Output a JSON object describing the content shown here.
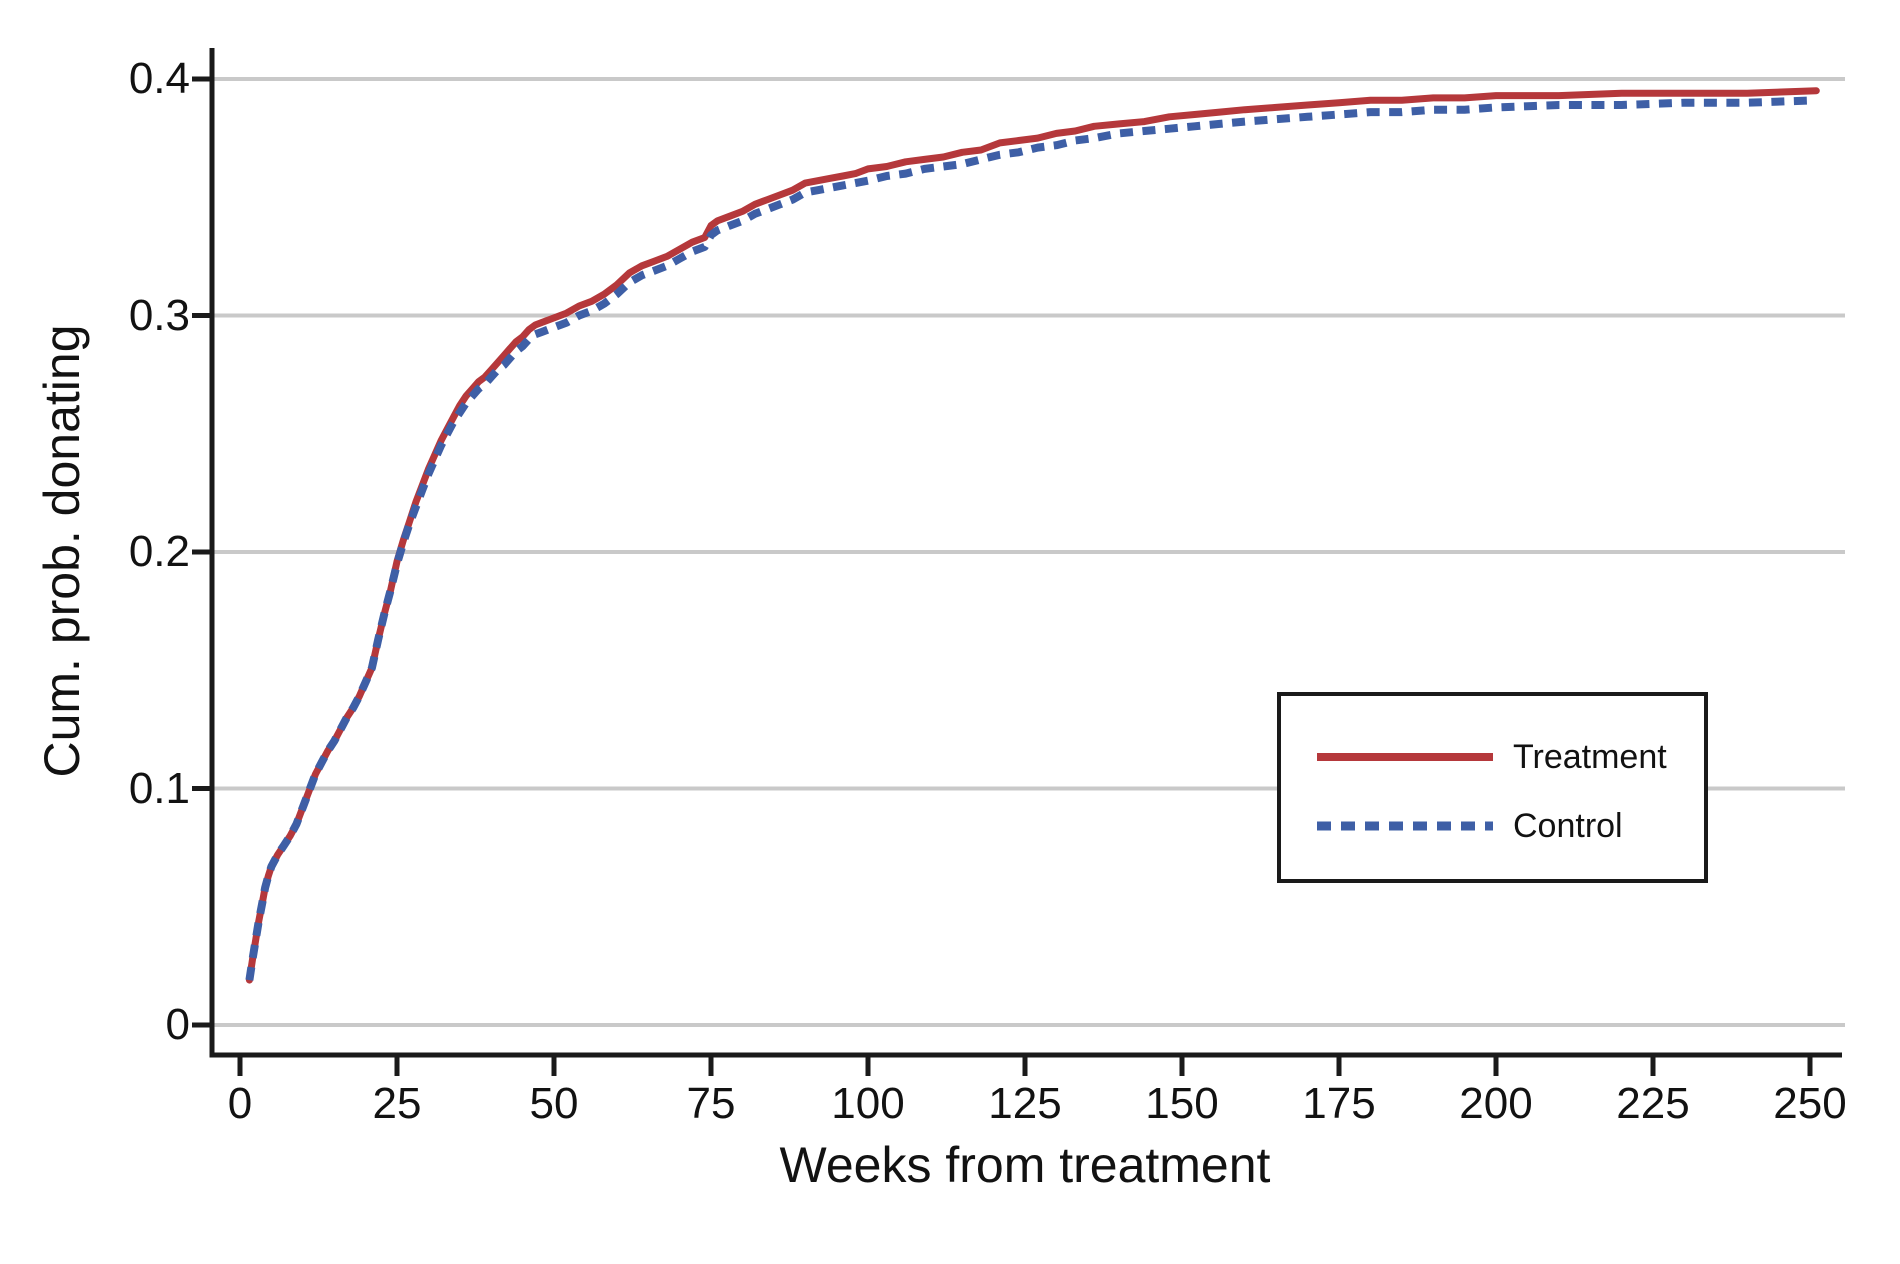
{
  "figure": {
    "background": "#ffffff",
    "text_color": "#121212",
    "gridline_color": "#c9c9c9",
    "axis_color": "#1a1a1a"
  },
  "chart_data": {
    "type": "line",
    "title": "",
    "xlabel": "Weeks from treatment",
    "ylabel": "Cum. prob. donating",
    "xlim": [
      0,
      250
    ],
    "ylim": [
      0,
      0.4
    ],
    "x_ticks": [
      "0",
      "25",
      "50",
      "75",
      "100",
      "125",
      "150",
      "175",
      "200",
      "225",
      "250"
    ],
    "y_ticks": [
      "0",
      "0.1",
      "0.2",
      "0.3",
      "0.4"
    ],
    "grid": "horizontal gridlines at y ticks",
    "legend": {
      "position": "lower right",
      "border": true
    },
    "series": [
      {
        "name": "Treatment",
        "color": "#b5383b",
        "style": "solid",
        "points": [
          [
            1.5,
            0.019
          ],
          [
            2,
            0.028
          ],
          [
            2.5,
            0.036
          ],
          [
            3,
            0.044
          ],
          [
            3.5,
            0.051
          ],
          [
            4,
            0.058
          ],
          [
            4.5,
            0.063
          ],
          [
            5,
            0.067
          ],
          [
            6,
            0.072
          ],
          [
            7,
            0.076
          ],
          [
            8,
            0.08
          ],
          [
            9,
            0.085
          ],
          [
            10,
            0.092
          ],
          [
            11,
            0.099
          ],
          [
            12,
            0.106
          ],
          [
            13,
            0.111
          ],
          [
            14,
            0.116
          ],
          [
            15,
            0.12
          ],
          [
            16,
            0.125
          ],
          [
            17,
            0.13
          ],
          [
            18,
            0.134
          ],
          [
            19,
            0.139
          ],
          [
            20,
            0.145
          ],
          [
            21,
            0.151
          ],
          [
            22,
            0.163
          ],
          [
            23,
            0.174
          ],
          [
            24,
            0.184
          ],
          [
            25,
            0.196
          ],
          [
            26,
            0.205
          ],
          [
            27,
            0.213
          ],
          [
            28,
            0.221
          ],
          [
            29,
            0.228
          ],
          [
            30,
            0.235
          ],
          [
            31,
            0.241
          ],
          [
            32,
            0.247
          ],
          [
            33,
            0.252
          ],
          [
            34,
            0.257
          ],
          [
            35,
            0.262
          ],
          [
            36,
            0.266
          ],
          [
            37,
            0.269
          ],
          [
            38,
            0.272
          ],
          [
            39,
            0.274
          ],
          [
            40,
            0.277
          ],
          [
            41,
            0.28
          ],
          [
            42,
            0.283
          ],
          [
            43,
            0.286
          ],
          [
            44,
            0.289
          ],
          [
            45,
            0.291
          ],
          [
            46,
            0.294
          ],
          [
            47,
            0.296
          ],
          [
            48,
            0.297
          ],
          [
            50,
            0.299
          ],
          [
            52,
            0.301
          ],
          [
            54,
            0.304
          ],
          [
            56,
            0.306
          ],
          [
            58,
            0.309
          ],
          [
            60,
            0.313
          ],
          [
            62,
            0.318
          ],
          [
            64,
            0.321
          ],
          [
            66,
            0.323
          ],
          [
            68,
            0.325
          ],
          [
            70,
            0.328
          ],
          [
            72,
            0.331
          ],
          [
            74,
            0.333
          ],
          [
            75,
            0.338
          ],
          [
            76,
            0.34
          ],
          [
            78,
            0.342
          ],
          [
            80,
            0.344
          ],
          [
            82,
            0.347
          ],
          [
            84,
            0.349
          ],
          [
            86,
            0.351
          ],
          [
            88,
            0.353
          ],
          [
            90,
            0.356
          ],
          [
            92,
            0.357
          ],
          [
            94,
            0.358
          ],
          [
            96,
            0.359
          ],
          [
            98,
            0.36
          ],
          [
            100,
            0.362
          ],
          [
            103,
            0.363
          ],
          [
            106,
            0.365
          ],
          [
            109,
            0.366
          ],
          [
            112,
            0.367
          ],
          [
            115,
            0.369
          ],
          [
            118,
            0.37
          ],
          [
            121,
            0.373
          ],
          [
            124,
            0.374
          ],
          [
            127,
            0.375
          ],
          [
            130,
            0.377
          ],
          [
            133,
            0.378
          ],
          [
            136,
            0.38
          ],
          [
            140,
            0.381
          ],
          [
            144,
            0.382
          ],
          [
            148,
            0.384
          ],
          [
            152,
            0.385
          ],
          [
            156,
            0.386
          ],
          [
            160,
            0.387
          ],
          [
            165,
            0.388
          ],
          [
            170,
            0.389
          ],
          [
            175,
            0.39
          ],
          [
            180,
            0.391
          ],
          [
            185,
            0.391
          ],
          [
            190,
            0.392
          ],
          [
            195,
            0.392
          ],
          [
            200,
            0.393
          ],
          [
            210,
            0.393
          ],
          [
            220,
            0.394
          ],
          [
            230,
            0.394
          ],
          [
            240,
            0.394
          ],
          [
            251,
            0.395
          ]
        ]
      },
      {
        "name": "Control",
        "color": "#3e5fa6",
        "style": "dashed",
        "points": [
          [
            1.5,
            0.019
          ],
          [
            2,
            0.028
          ],
          [
            2.5,
            0.036
          ],
          [
            3,
            0.044
          ],
          [
            3.5,
            0.051
          ],
          [
            4,
            0.058
          ],
          [
            4.5,
            0.063
          ],
          [
            5,
            0.067
          ],
          [
            6,
            0.072
          ],
          [
            7,
            0.076
          ],
          [
            8,
            0.08
          ],
          [
            9,
            0.085
          ],
          [
            10,
            0.092
          ],
          [
            11,
            0.099
          ],
          [
            12,
            0.106
          ],
          [
            13,
            0.111
          ],
          [
            14,
            0.116
          ],
          [
            15,
            0.12
          ],
          [
            16,
            0.125
          ],
          [
            17,
            0.13
          ],
          [
            18,
            0.134
          ],
          [
            19,
            0.139
          ],
          [
            20,
            0.145
          ],
          [
            21,
            0.151
          ],
          [
            22,
            0.163
          ],
          [
            23,
            0.174
          ],
          [
            24,
            0.184
          ],
          [
            25,
            0.195
          ],
          [
            26,
            0.204
          ],
          [
            27,
            0.212
          ],
          [
            28,
            0.219
          ],
          [
            29,
            0.226
          ],
          [
            30,
            0.233
          ],
          [
            31,
            0.239
          ],
          [
            32,
            0.245
          ],
          [
            33,
            0.25
          ],
          [
            34,
            0.255
          ],
          [
            35,
            0.259
          ],
          [
            36,
            0.263
          ],
          [
            37,
            0.266
          ],
          [
            38,
            0.269
          ],
          [
            39,
            0.271
          ],
          [
            40,
            0.274
          ],
          [
            41,
            0.277
          ],
          [
            42,
            0.279
          ],
          [
            43,
            0.282
          ],
          [
            44,
            0.285
          ],
          [
            45,
            0.287
          ],
          [
            46,
            0.29
          ],
          [
            47,
            0.292
          ],
          [
            48,
            0.293
          ],
          [
            50,
            0.295
          ],
          [
            52,
            0.297
          ],
          [
            54,
            0.3
          ],
          [
            56,
            0.302
          ],
          [
            58,
            0.305
          ],
          [
            60,
            0.309
          ],
          [
            62,
            0.314
          ],
          [
            64,
            0.317
          ],
          [
            66,
            0.319
          ],
          [
            68,
            0.321
          ],
          [
            70,
            0.324
          ],
          [
            72,
            0.327
          ],
          [
            74,
            0.329
          ],
          [
            75,
            0.334
          ],
          [
            76,
            0.336
          ],
          [
            78,
            0.338
          ],
          [
            80,
            0.34
          ],
          [
            82,
            0.343
          ],
          [
            84,
            0.345
          ],
          [
            86,
            0.347
          ],
          [
            88,
            0.349
          ],
          [
            90,
            0.352
          ],
          [
            92,
            0.353
          ],
          [
            94,
            0.354
          ],
          [
            96,
            0.355
          ],
          [
            98,
            0.356
          ],
          [
            100,
            0.357
          ],
          [
            103,
            0.359
          ],
          [
            106,
            0.36
          ],
          [
            109,
            0.362
          ],
          [
            112,
            0.363
          ],
          [
            115,
            0.364
          ],
          [
            118,
            0.366
          ],
          [
            121,
            0.368
          ],
          [
            124,
            0.369
          ],
          [
            127,
            0.371
          ],
          [
            130,
            0.372
          ],
          [
            133,
            0.374
          ],
          [
            136,
            0.375
          ],
          [
            140,
            0.377
          ],
          [
            144,
            0.378
          ],
          [
            148,
            0.379
          ],
          [
            152,
            0.38
          ],
          [
            156,
            0.381
          ],
          [
            160,
            0.382
          ],
          [
            165,
            0.383
          ],
          [
            170,
            0.384
          ],
          [
            175,
            0.385
          ],
          [
            180,
            0.386
          ],
          [
            185,
            0.386
          ],
          [
            190,
            0.387
          ],
          [
            195,
            0.387
          ],
          [
            200,
            0.388
          ],
          [
            210,
            0.389
          ],
          [
            220,
            0.389
          ],
          [
            230,
            0.39
          ],
          [
            240,
            0.39
          ],
          [
            251,
            0.391
          ]
        ]
      }
    ]
  }
}
